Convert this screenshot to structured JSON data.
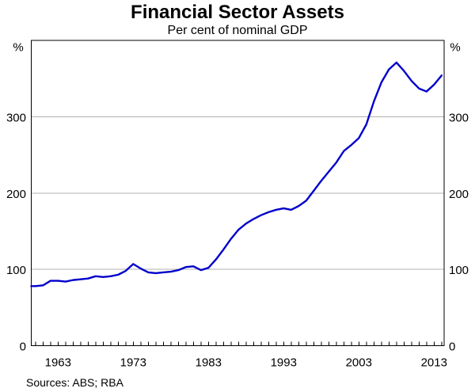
{
  "header": {
    "title": "Financial Sector Assets",
    "subtitle": "Per cent of nominal GDP"
  },
  "footer": {
    "sources": "Sources: ABS; RBA"
  },
  "chart_data": {
    "type": "line",
    "title": "Financial Sector Assets",
    "subtitle": "Per cent of nominal GDP",
    "unit_label": "%",
    "ylim": [
      0,
      400
    ],
    "ytick_values": [
      0,
      100,
      200,
      300
    ],
    "gridline_values": [
      100,
      200,
      300
    ],
    "y_axis_sides": [
      "left",
      "right"
    ],
    "xtick_label_years": [
      "1963",
      "1973",
      "1983",
      "1993",
      "2003",
      "2013"
    ],
    "x_axis_range_years": [
      1959.44,
      2014.34
    ],
    "minor_ticks": {
      "start_year": 1960,
      "end_year": 2014,
      "step": 1
    },
    "grid": "horizontal-only",
    "legend_position": "none",
    "line_color": "#0000CC",
    "gridline_color": "#b0b0b0",
    "axis_color": "#000000",
    "sources": "Sources: ABS; RBA",
    "series": [
      {
        "name": "Financial sector assets, per cent of nominal GDP",
        "x": [
          1960,
          1961,
          1962,
          1963,
          1964,
          1965,
          1966,
          1967,
          1968,
          1969,
          1970,
          1971,
          1972,
          1973,
          1974,
          1975,
          1976,
          1977,
          1978,
          1979,
          1980,
          1981,
          1982,
          1983,
          1984,
          1985,
          1986,
          1987,
          1988,
          1989,
          1990,
          1991,
          1992,
          1993,
          1994,
          1995,
          1996,
          1997,
          1998,
          1999,
          2000,
          2001,
          2002,
          2003,
          2004,
          2005,
          2006,
          2007,
          2008,
          2009,
          2010,
          2011,
          2012,
          2013,
          2014
        ],
        "values": [
          78,
          79,
          85,
          85,
          84,
          86,
          87,
          88,
          91,
          90,
          91,
          93,
          98,
          107,
          101,
          96,
          95,
          96,
          97,
          99,
          103,
          104,
          99,
          102,
          113,
          126,
          140,
          152,
          160,
          166,
          171,
          175,
          178,
          180,
          178,
          183,
          190,
          203,
          216,
          228,
          240,
          255,
          263,
          272,
          290,
          320,
          345,
          362,
          371,
          360,
          347,
          337,
          333,
          342,
          354
        ]
      }
    ]
  }
}
